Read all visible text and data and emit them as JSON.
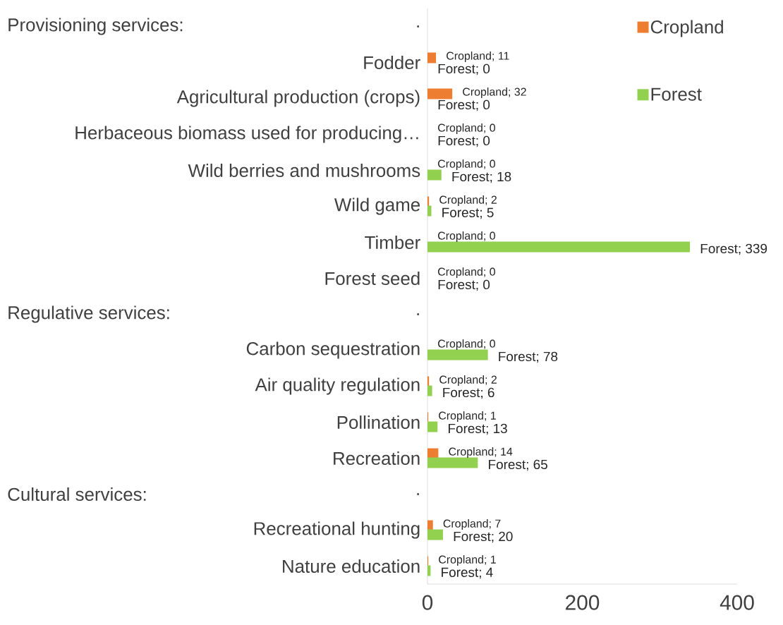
{
  "chart_data": {
    "type": "bar",
    "orientation": "horizontal",
    "categories": [
      ".",
      "Fodder",
      "Agricultural production (crops)",
      "Herbaceous biomass used for producing…",
      "Wild berries and mushrooms",
      "Wild game",
      "Timber",
      "Forest seed",
      ".",
      "Carbon sequestration",
      "Air quality regulation",
      "Pollination",
      "Recreation",
      ".",
      "Recreational hunting",
      "Nature education"
    ],
    "annotations": [
      "Provisioning services:",
      "Regulative services:",
      "Cultural services:"
    ],
    "series": [
      {
        "name": "Cropland",
        "color": "#ed7d31",
        "values": [
          null,
          11,
          32,
          0,
          0,
          2,
          0,
          0,
          null,
          0,
          2,
          1,
          14,
          null,
          7,
          1
        ],
        "value_labels": [
          null,
          "Cropland; 11",
          "Cropland; 32",
          "Cropland; 0",
          "Cropland; 0",
          "Cropland; 2",
          "Cropland; 0",
          "Cropland; 0",
          null,
          "Cropland; 0",
          "Cropland; 2",
          "Cropland; 1",
          "Cropland; 14",
          null,
          "Cropland; 7",
          "Cropland; 1"
        ]
      },
      {
        "name": "Forest",
        "color": "#92d050",
        "values": [
          null,
          0,
          0,
          0,
          18,
          5,
          339,
          0,
          null,
          78,
          6,
          13,
          65,
          null,
          20,
          4
        ],
        "value_labels": [
          null,
          "Forest; 0",
          "Forest; 0",
          "Forest; 0",
          "Forest; 18",
          "Forest; 5",
          "Forest; 339",
          "Forest; 0",
          null,
          "Forest; 78",
          "Forest; 6",
          "Forest; 13",
          "Forest; 65",
          null,
          "Forest; 20",
          "Forest; 4"
        ]
      }
    ],
    "xlim": [
      0,
      400
    ],
    "xticks": [
      0,
      200,
      400
    ],
    "legend": "top right",
    "grid": false
  }
}
